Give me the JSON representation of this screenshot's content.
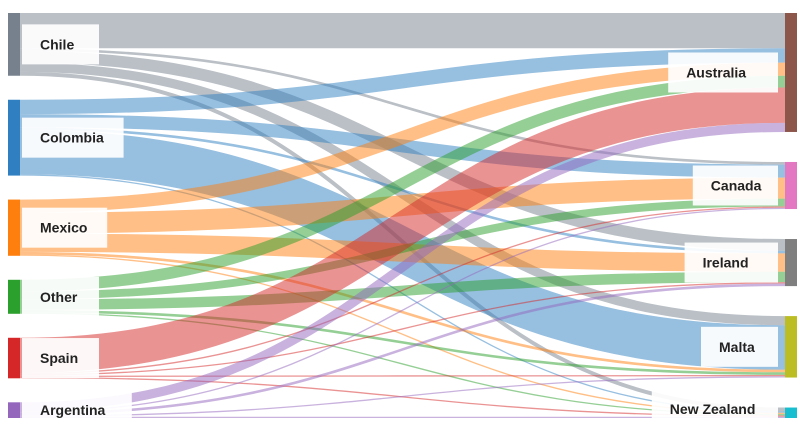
{
  "chart_data": {
    "type": "sankey",
    "sources": [
      {
        "id": "chile",
        "label": "Chile",
        "color": "#76818d"
      },
      {
        "id": "colombia",
        "label": "Colombia",
        "color": "#2f7fc1"
      },
      {
        "id": "mexico",
        "label": "Mexico",
        "color": "#ff7f0e"
      },
      {
        "id": "other",
        "label": "Other",
        "color": "#2ca02c"
      },
      {
        "id": "spain",
        "label": "Spain",
        "color": "#d62728"
      },
      {
        "id": "argentina",
        "label": "Argentina",
        "color": "#9467bd"
      }
    ],
    "targets": [
      {
        "id": "australia",
        "label": "Australia",
        "color": "#8c564b"
      },
      {
        "id": "canada",
        "label": "Canada",
        "color": "#e377c2"
      },
      {
        "id": "ireland",
        "label": "Ireland",
        "color": "#7f7f7f"
      },
      {
        "id": "malta",
        "label": "Malta",
        "color": "#bcbd22"
      },
      {
        "id": "new_zealand",
        "label": "New Zealand",
        "color": "#17becf"
      }
    ],
    "flows": [
      {
        "source": "chile",
        "target": "australia",
        "value": 27
      },
      {
        "source": "chile",
        "target": "canada",
        "value": 2
      },
      {
        "source": "chile",
        "target": "ireland",
        "value": 9
      },
      {
        "source": "chile",
        "target": "malta",
        "value": 7
      },
      {
        "source": "chile",
        "target": "new_zealand",
        "value": 3
      },
      {
        "source": "colombia",
        "target": "australia",
        "value": 11
      },
      {
        "source": "colombia",
        "target": "canada",
        "value": 10
      },
      {
        "source": "colombia",
        "target": "ireland",
        "value": 2
      },
      {
        "source": "colombia",
        "target": "malta",
        "value": 34
      },
      {
        "source": "colombia",
        "target": "new_zealand",
        "value": 1
      },
      {
        "source": "mexico",
        "target": "australia",
        "value": 10
      },
      {
        "source": "mexico",
        "target": "canada",
        "value": 16
      },
      {
        "source": "mexico",
        "target": "ireland",
        "value": 14
      },
      {
        "source": "mexico",
        "target": "malta",
        "value": 2
      },
      {
        "source": "mexico",
        "target": "new_zealand",
        "value": 1
      },
      {
        "source": "other",
        "target": "australia",
        "value": 9
      },
      {
        "source": "other",
        "target": "canada",
        "value": 6
      },
      {
        "source": "other",
        "target": "ireland",
        "value": 8
      },
      {
        "source": "other",
        "target": "malta",
        "value": 2
      },
      {
        "source": "other",
        "target": "new_zealand",
        "value": 1
      },
      {
        "source": "spain",
        "target": "australia",
        "value": 27
      },
      {
        "source": "spain",
        "target": "canada",
        "value": 1
      },
      {
        "source": "spain",
        "target": "ireland",
        "value": 1
      },
      {
        "source": "spain",
        "target": "malta",
        "value": 1
      },
      {
        "source": "spain",
        "target": "new_zealand",
        "value": 1
      },
      {
        "source": "argentina",
        "target": "australia",
        "value": 7
      },
      {
        "source": "argentina",
        "target": "canada",
        "value": 1
      },
      {
        "source": "argentina",
        "target": "ireland",
        "value": 2
      },
      {
        "source": "argentina",
        "target": "malta",
        "value": 1
      },
      {
        "source": "argentina",
        "target": "new_zealand",
        "value": 1
      }
    ]
  }
}
